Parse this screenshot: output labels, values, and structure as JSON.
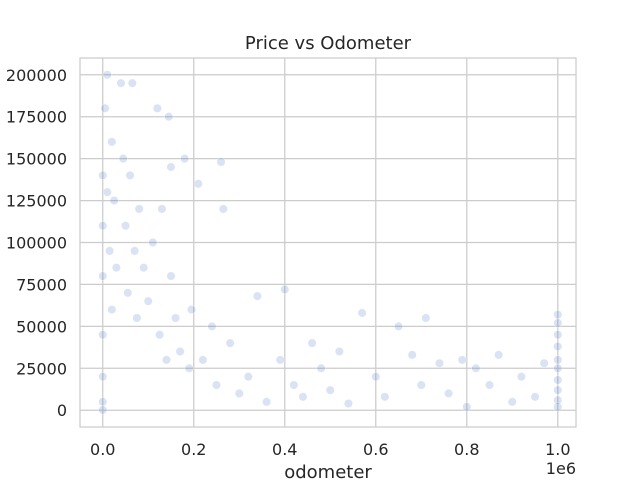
{
  "chart_data": {
    "type": "scatter",
    "title": "Price vs Odometer",
    "xlabel": "odometer",
    "ylabel": "",
    "x_offset_label": "1e6",
    "xlim": [
      -50000,
      1040000
    ],
    "ylim": [
      -10000,
      210000
    ],
    "x_ticks": [
      0,
      200000,
      400000,
      600000,
      800000,
      1000000
    ],
    "x_tick_labels": [
      "0.0",
      "0.2",
      "0.4",
      "0.6",
      "0.8",
      "1.0"
    ],
    "y_ticks": [
      0,
      25000,
      50000,
      75000,
      100000,
      125000,
      150000,
      175000,
      200000
    ],
    "y_tick_labels": [
      "0",
      "25000",
      "50000",
      "75000",
      "100000",
      "125000",
      "150000",
      "175000",
      "200000"
    ],
    "grid": true,
    "point_color": "#4472c4",
    "point_alpha": 0.2,
    "series": [
      {
        "points": [
          [
            0,
            5000
          ],
          [
            0,
            20000
          ],
          [
            0,
            45000
          ],
          [
            0,
            80000
          ],
          [
            0,
            110000
          ],
          [
            0,
            140000
          ],
          [
            0,
            200
          ],
          [
            5000,
            180000
          ],
          [
            10000,
            200000
          ],
          [
            10000,
            130000
          ],
          [
            15000,
            95000
          ],
          [
            20000,
            60000
          ],
          [
            20000,
            160000
          ],
          [
            25000,
            125000
          ],
          [
            30000,
            85000
          ],
          [
            40000,
            195000
          ],
          [
            45000,
            150000
          ],
          [
            50000,
            110000
          ],
          [
            55000,
            70000
          ],
          [
            60000,
            140000
          ],
          [
            65000,
            195000
          ],
          [
            70000,
            95000
          ],
          [
            75000,
            55000
          ],
          [
            80000,
            120000
          ],
          [
            90000,
            85000
          ],
          [
            100000,
            65000
          ],
          [
            110000,
            100000
          ],
          [
            120000,
            180000
          ],
          [
            125000,
            45000
          ],
          [
            130000,
            120000
          ],
          [
            140000,
            30000
          ],
          [
            145000,
            175000
          ],
          [
            150000,
            145000
          ],
          [
            150000,
            80000
          ],
          [
            160000,
            55000
          ],
          [
            170000,
            35000
          ],
          [
            180000,
            150000
          ],
          [
            190000,
            25000
          ],
          [
            195000,
            60000
          ],
          [
            210000,
            135000
          ],
          [
            220000,
            30000
          ],
          [
            240000,
            50000
          ],
          [
            250000,
            15000
          ],
          [
            260000,
            148000
          ],
          [
            265000,
            120000
          ],
          [
            280000,
            40000
          ],
          [
            300000,
            10000
          ],
          [
            320000,
            20000
          ],
          [
            340000,
            68000
          ],
          [
            360000,
            5000
          ],
          [
            390000,
            30000
          ],
          [
            400000,
            72000
          ],
          [
            420000,
            15000
          ],
          [
            440000,
            8000
          ],
          [
            460000,
            40000
          ],
          [
            480000,
            25000
          ],
          [
            500000,
            12000
          ],
          [
            520000,
            35000
          ],
          [
            540000,
            4000
          ],
          [
            570000,
            58000
          ],
          [
            600000,
            20000
          ],
          [
            620000,
            8000
          ],
          [
            650000,
            50000
          ],
          [
            680000,
            33000
          ],
          [
            700000,
            15000
          ],
          [
            710000,
            55000
          ],
          [
            740000,
            28000
          ],
          [
            760000,
            10000
          ],
          [
            790000,
            30000
          ],
          [
            800000,
            2000
          ],
          [
            820000,
            25000
          ],
          [
            850000,
            15000
          ],
          [
            870000,
            33000
          ],
          [
            900000,
            5000
          ],
          [
            920000,
            20000
          ],
          [
            950000,
            8000
          ],
          [
            970000,
            28000
          ],
          [
            1000000,
            57000
          ],
          [
            1000000,
            52000
          ],
          [
            1000000,
            45000
          ],
          [
            1000000,
            38000
          ],
          [
            1000000,
            30000
          ],
          [
            1000000,
            25000
          ],
          [
            1000000,
            18000
          ],
          [
            1000000,
            12000
          ],
          [
            1000000,
            6000
          ],
          [
            1000000,
            2000
          ]
        ]
      }
    ]
  }
}
